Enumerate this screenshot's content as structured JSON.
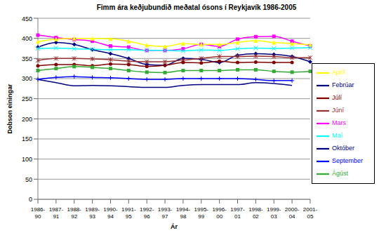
{
  "chart_data": {
    "type": "line",
    "title": "Fimm ára keðjubundið meðatal ósons í Reykjavík 1986-2005",
    "x_label": "Ár",
    "y_label": "Dobson einingar",
    "categories": [
      "1986-90",
      "1987-91",
      "1988-92",
      "1989-93",
      "1990-94",
      "1991-95",
      "1992-96",
      "1993-97",
      "1994-98",
      "1995-99",
      "1996-00",
      "1997-01",
      "1998-02",
      "1999-03",
      "2000-04",
      "2001-05"
    ],
    "ylim": [
      0,
      450
    ],
    "yticks": [
      0,
      50,
      100,
      150,
      200,
      250,
      300,
      350,
      400,
      450
    ],
    "grid": true,
    "legend": "right",
    "series": [
      {
        "name": "Febrúar",
        "color": "#000080",
        "marker": "diamond",
        "values": [
          378,
          390,
          385,
          372,
          362,
          350,
          335,
          333,
          350,
          348,
          340,
          358,
          362,
          360,
          355,
          342
        ]
      },
      {
        "name": "Mars",
        "color": "#ff00ff",
        "marker": "square",
        "values": [
          408,
          402,
          397,
          393,
          381,
          378,
          370,
          370,
          374,
          385,
          380,
          398,
          404,
          405,
          393,
          381
        ]
      },
      {
        "name": "Apríl",
        "color": "#ffff00",
        "marker": "triangle",
        "values": [
          392,
          398,
          400,
          400,
          399,
          393,
          383,
          380,
          387,
          385,
          385,
          390,
          394,
          390,
          387,
          384
        ]
      },
      {
        "name": "Maí",
        "color": "#00ffff",
        "marker": "x",
        "values": [
          375,
          376,
          374,
          373,
          372,
          372,
          370,
          370,
          369,
          371,
          370,
          374,
          376,
          375,
          376,
          377
        ]
      },
      {
        "name": "Júní",
        "color": "#993333",
        "marker": "star",
        "values": [
          345,
          350,
          350,
          349,
          347,
          343,
          342,
          342,
          346,
          350,
          355,
          355,
          356,
          355,
          352,
          352
        ]
      },
      {
        "name": "Júlí",
        "color": "#800000",
        "marker": "circle",
        "values": [
          332,
          335,
          335,
          332,
          336,
          335,
          330,
          333,
          340,
          339,
          343,
          340,
          341,
          340,
          340,
          null
        ]
      },
      {
        "name": "Ágúst",
        "color": "#33aa33",
        "marker": "square",
        "values": [
          320,
          325,
          330,
          328,
          325,
          320,
          316,
          315,
          320,
          320,
          320,
          322,
          322,
          318,
          316,
          318
        ]
      },
      {
        "name": "September",
        "color": "#0000ff",
        "marker": "plus",
        "values": [
          298,
          303,
          305,
          303,
          302,
          300,
          298,
          298,
          300,
          300,
          300,
          300,
          298,
          295,
          295,
          null
        ]
      },
      {
        "name": "Október",
        "color": "#000080",
        "marker": "none",
        "values": [
          298,
          290,
          282,
          283,
          282,
          280,
          278,
          278,
          283,
          285,
          285,
          285,
          290,
          288,
          283,
          null
        ]
      }
    ]
  }
}
